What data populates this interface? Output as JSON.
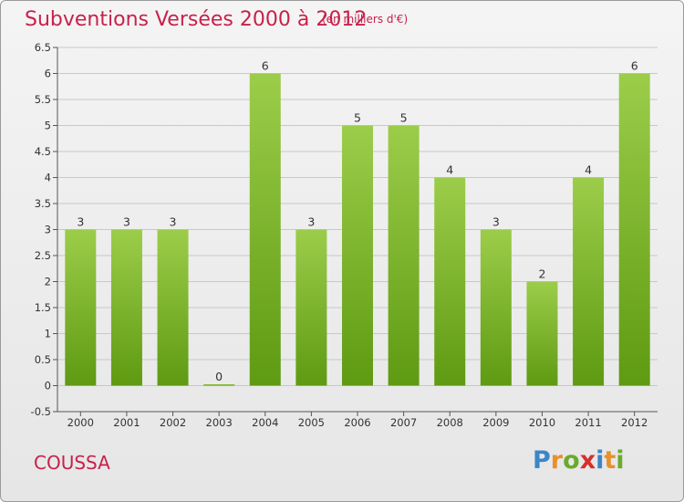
{
  "header": {
    "title": "Subventions Versées 2000 à 2012",
    "subtitle": "(en milliers d'€)"
  },
  "footer": {
    "commune": "COUSSA",
    "logo_letters": [
      "P",
      "r",
      "o",
      "x",
      "i",
      "t",
      "i"
    ],
    "logo_colors": [
      "#3a86c8",
      "#e8902a",
      "#6aaa2c",
      "#d6312d",
      "#3a86c8",
      "#e8902a",
      "#6aaa2c"
    ]
  },
  "chart_data": {
    "type": "bar",
    "title": "Subventions Versées 2000 à 2012",
    "subtitle": "(en milliers d'€)",
    "categories": [
      "2000",
      "2001",
      "2002",
      "2003",
      "2004",
      "2005",
      "2006",
      "2007",
      "2008",
      "2009",
      "2010",
      "2011",
      "2012"
    ],
    "values": [
      3,
      3,
      3,
      0,
      6,
      3,
      5,
      5,
      4,
      3,
      2,
      4,
      6
    ],
    "value_labels": [
      "3",
      "3",
      "3",
      "0",
      "6",
      "3",
      "5",
      "5",
      "4",
      "3",
      "2",
      "4",
      "6"
    ],
    "ylim": [
      -0.5,
      6.5
    ],
    "yticks": [
      -0.5,
      0,
      0.5,
      1,
      1.5,
      2,
      2.5,
      3,
      3.5,
      4,
      4.5,
      5,
      5.5,
      6,
      6.5
    ],
    "ytick_labels": [
      "-0.5",
      "0",
      "0.5",
      "1",
      "1.5",
      "2",
      "2.5",
      "3",
      "3.5",
      "4",
      "4.5",
      "5",
      "5.5",
      "6",
      "6.5"
    ],
    "grid": "horizontal",
    "colors": {
      "bar_top": "#9ccd4a",
      "bar_bottom": "#5e9a12",
      "grid": "#c8c8c8"
    }
  }
}
